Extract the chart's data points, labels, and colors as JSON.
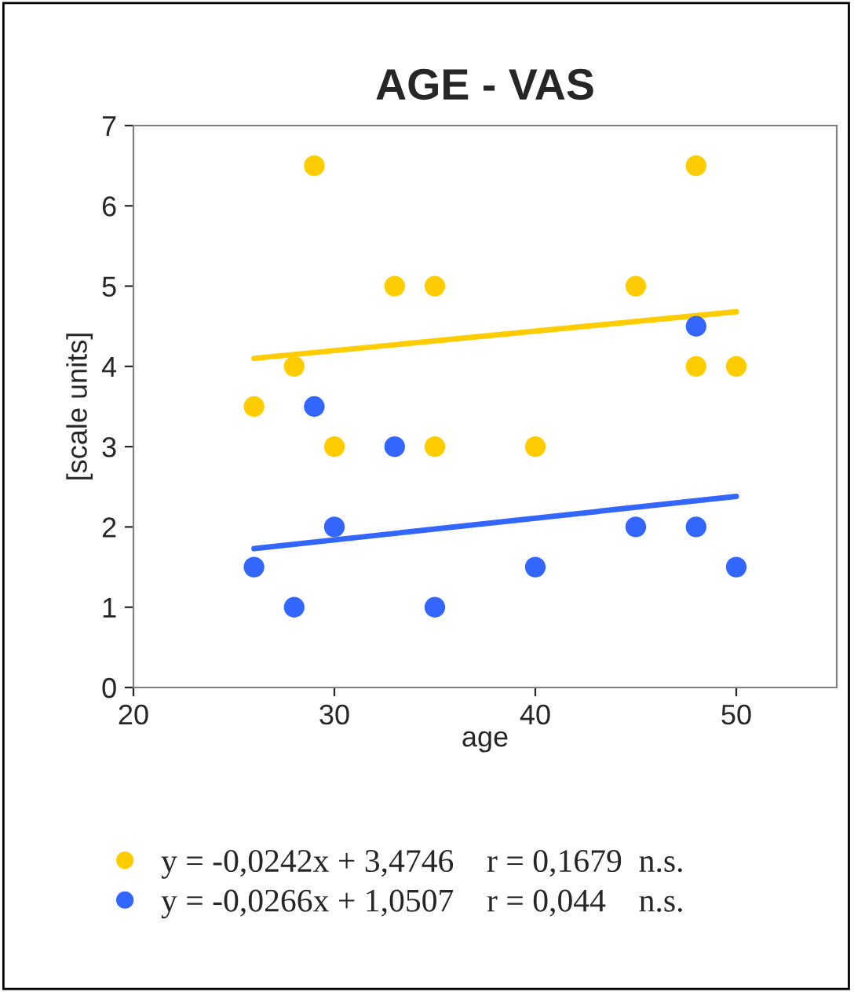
{
  "chart_data": {
    "type": "scatter",
    "title": "AGE - VAS",
    "xlabel": "age",
    "ylabel": "[scale units]",
    "xlim": [
      20,
      55
    ],
    "xticks": [
      20,
      30,
      40,
      50
    ],
    "ylim": [
      0,
      7
    ],
    "yticks": [
      0,
      1,
      2,
      3,
      4,
      5,
      6,
      7
    ],
    "grid": false,
    "legend": "bottom",
    "marker": "circle",
    "series": [
      {
        "name": "y = -0,0242x + 3,4746    r = 0,1679  n.s.",
        "color": "#ffcc00",
        "x": [
          26,
          28,
          29,
          30,
          33,
          35,
          35,
          40,
          45,
          48,
          48,
          50
        ],
        "values": [
          3.5,
          4,
          6.5,
          3,
          5,
          5,
          3,
          3,
          5,
          6.5,
          4,
          4
        ]
      },
      {
        "name": "y = -0,0266x + 1,0507    r = 0,044    n.s.",
        "color": "#3366ff",
        "x": [
          26,
          28,
          29,
          30,
          33,
          35,
          40,
          45,
          48,
          48,
          50
        ],
        "values": [
          1.5,
          1,
          3.5,
          2,
          3,
          1,
          1.5,
          2,
          4.5,
          2,
          1.5
        ]
      },
      {
        "type": "line",
        "marker": "none",
        "color": "#ffcc00",
        "x": [
          26,
          50
        ],
        "values": [
          4.1,
          4.68
        ]
      },
      {
        "type": "line",
        "marker": "none",
        "color": "#3366ff",
        "x": [
          26,
          50
        ],
        "values": [
          1.73,
          2.38
        ]
      }
    ]
  }
}
